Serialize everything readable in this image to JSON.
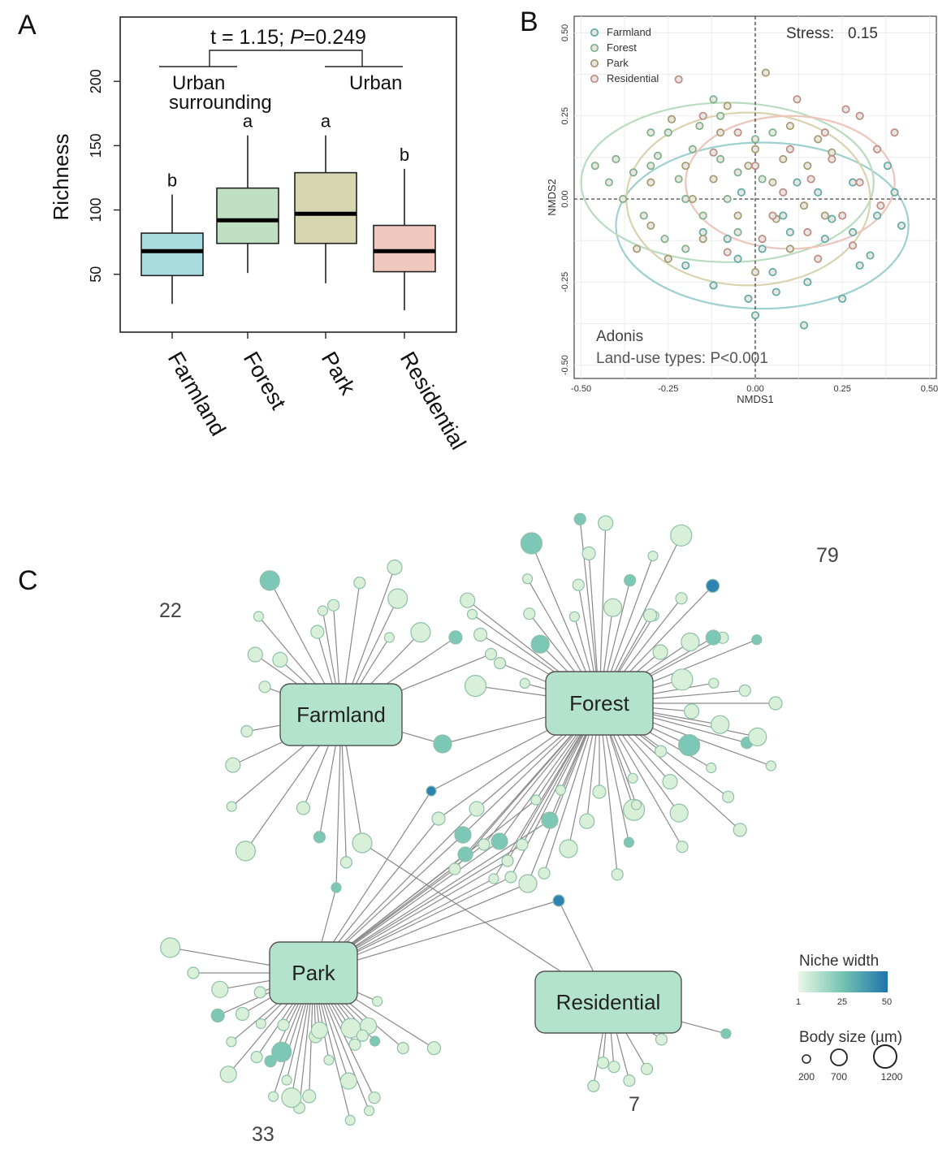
{
  "panel_labels": {
    "a": "A",
    "b": "B",
    "c": "C"
  },
  "colors": {
    "farmland": "#a9dcdf",
    "forest": "#bfe0c3",
    "park": "#d6d7b1",
    "residential": "#efc9bd",
    "node_low": "#e8f6e6",
    "node_mid": "#74c3b1",
    "node_high": "#2279ad",
    "hub": "#b4e3cd"
  },
  "chart_data": [
    {
      "type": "box",
      "panel": "A",
      "title": "t = 1.15; P=0.249",
      "ylabel": "Richness",
      "ylim": [
        5,
        250
      ],
      "yticks": [
        50,
        100,
        150,
        200
      ],
      "categories": [
        "Farmland",
        "Forest",
        "Park",
        "Residential"
      ],
      "boxes": [
        {
          "category": "Farmland",
          "min": 27,
          "q1": 49,
          "median": 68,
          "q3": 82,
          "max": 112,
          "letter": "b"
        },
        {
          "category": "Forest",
          "min": 51,
          "q1": 74,
          "median": 92,
          "q3": 117,
          "max": 158,
          "letter": "a"
        },
        {
          "category": "Park",
          "min": 43,
          "q1": 74,
          "median": 97,
          "q3": 129,
          "max": 158,
          "letter": "a"
        },
        {
          "category": "Residential",
          "min": 22,
          "q1": 52,
          "median": 68,
          "q3": 88,
          "max": 132,
          "letter": "b"
        }
      ],
      "group_labels": {
        "left": [
          "Urban",
          "surrounding"
        ],
        "right": "Urban"
      }
    },
    {
      "type": "scatter",
      "panel": "B",
      "xlabel": "NMDS1",
      "ylabel": "NMDS2",
      "xlim": [
        -0.52,
        0.52
      ],
      "ylim": [
        -0.54,
        0.55
      ],
      "xticks": [
        -0.5,
        -0.25,
        0.0,
        0.25,
        0.5
      ],
      "yticks": [
        -0.5,
        -0.25,
        0.0,
        0.25,
        0.5
      ],
      "xticklabels": [
        "-0.50",
        "-0.25",
        "0.00",
        "0.25",
        "0.50"
      ],
      "yticklabels": [
        "-0.50",
        "-0.25",
        "0.00",
        "0.25",
        "0.50"
      ],
      "stress_label": "Stress:",
      "stress": "0.15",
      "annotation": [
        "Adonis",
        "Land-use types: P<0.001"
      ],
      "legend_position": "top-left",
      "grid": true,
      "series": [
        {
          "name": "Farmland",
          "color": "#5fa9a7",
          "ellipse": {
            "cx": 0.02,
            "cy": -0.08,
            "rx": 0.42,
            "ry": 0.25
          },
          "points": [
            [
              -0.05,
              -0.18
            ],
            [
              0.05,
              -0.22
            ],
            [
              0.15,
              -0.25
            ],
            [
              -0.12,
              -0.26
            ],
            [
              0.2,
              -0.12
            ],
            [
              0.28,
              -0.1
            ],
            [
              0.35,
              -0.05
            ],
            [
              0.4,
              0.02
            ],
            [
              0.42,
              -0.08
            ],
            [
              0.3,
              -0.2
            ],
            [
              0.1,
              -0.1
            ],
            [
              -0.02,
              -0.3
            ],
            [
              0.0,
              -0.35
            ],
            [
              0.08,
              -0.05
            ],
            [
              0.18,
              0.02
            ],
            [
              -0.2,
              -0.2
            ],
            [
              0.25,
              -0.3
            ],
            [
              0.14,
              -0.38
            ],
            [
              -0.08,
              -0.12
            ],
            [
              0.33,
              -0.17
            ],
            [
              0.22,
              -0.06
            ],
            [
              0.06,
              -0.28
            ],
            [
              -0.15,
              -0.1
            ],
            [
              0.38,
              0.1
            ],
            [
              0.12,
              0.05
            ],
            [
              -0.04,
              0.02
            ],
            [
              0.02,
              -0.15
            ],
            [
              0.28,
              0.05
            ]
          ]
        },
        {
          "name": "Forest",
          "color": "#7fb08a",
          "ellipse": {
            "cx": -0.08,
            "cy": 0.05,
            "rx": 0.42,
            "ry": 0.24
          },
          "points": [
            [
              -0.4,
              0.12
            ],
            [
              -0.3,
              0.1
            ],
            [
              -0.25,
              0.2
            ],
            [
              -0.18,
              0.15
            ],
            [
              -0.1,
              0.25
            ],
            [
              -0.05,
              0.08
            ],
            [
              -0.2,
              0.0
            ],
            [
              -0.32,
              -0.05
            ],
            [
              -0.38,
              0.0
            ],
            [
              -0.15,
              -0.05
            ],
            [
              -0.1,
              0.12
            ],
            [
              0.0,
              0.18
            ],
            [
              -0.28,
              0.13
            ],
            [
              -0.12,
              0.3
            ],
            [
              -0.22,
              0.06
            ],
            [
              -0.35,
              0.08
            ],
            [
              -0.05,
              -0.1
            ],
            [
              0.05,
              0.2
            ],
            [
              -0.42,
              0.05
            ],
            [
              -0.16,
              0.22
            ],
            [
              -0.26,
              -0.12
            ],
            [
              -0.08,
              0.0
            ],
            [
              -0.3,
              0.2
            ],
            [
              0.02,
              0.06
            ],
            [
              -0.2,
              -0.15
            ],
            [
              -0.46,
              0.1
            ]
          ]
        },
        {
          "name": "Park",
          "color": "#a59a6f",
          "ellipse": {
            "cx": -0.02,
            "cy": 0.0,
            "rx": 0.35,
            "ry": 0.26
          },
          "points": [
            [
              -0.3,
              0.05
            ],
            [
              -0.2,
              0.1
            ],
            [
              -0.1,
              0.2
            ],
            [
              0.0,
              0.15
            ],
            [
              0.1,
              0.22
            ],
            [
              0.05,
              0.05
            ],
            [
              -0.05,
              -0.05
            ],
            [
              -0.15,
              -0.12
            ],
            [
              -0.25,
              -0.18
            ],
            [
              0.15,
              0.1
            ],
            [
              0.2,
              -0.05
            ],
            [
              0.1,
              -0.15
            ],
            [
              -0.08,
              0.28
            ],
            [
              0.0,
              -0.22
            ],
            [
              -0.3,
              -0.08
            ],
            [
              0.18,
              0.18
            ],
            [
              -0.18,
              0.0
            ],
            [
              0.08,
              0.12
            ],
            [
              -0.12,
              0.06
            ],
            [
              0.14,
              -0.02
            ],
            [
              -0.24,
              0.24
            ],
            [
              0.03,
              0.38
            ],
            [
              -0.34,
              -0.15
            ],
            [
              0.06,
              -0.06
            ],
            [
              -0.02,
              0.1
            ],
            [
              0.22,
              0.14
            ]
          ]
        },
        {
          "name": "Residential",
          "color": "#c08a84",
          "ellipse": {
            "cx": 0.1,
            "cy": 0.05,
            "rx": 0.3,
            "ry": 0.2
          },
          "points": [
            [
              0.0,
              0.1
            ],
            [
              0.1,
              0.15
            ],
            [
              0.2,
              0.2
            ],
            [
              0.3,
              0.05
            ],
            [
              0.25,
              -0.05
            ],
            [
              0.15,
              -0.1
            ],
            [
              0.05,
              -0.05
            ],
            [
              -0.05,
              0.2
            ],
            [
              0.35,
              0.15
            ],
            [
              0.3,
              0.25
            ],
            [
              0.4,
              0.2
            ],
            [
              0.12,
              0.3
            ],
            [
              -0.15,
              0.25
            ],
            [
              0.22,
              0.12
            ],
            [
              0.08,
              0.02
            ],
            [
              0.18,
              -0.18
            ],
            [
              0.28,
              -0.14
            ],
            [
              -0.08,
              -0.16
            ],
            [
              0.36,
              -0.02
            ],
            [
              -0.22,
              0.36
            ],
            [
              0.26,
              0.27
            ],
            [
              0.02,
              -0.12
            ],
            [
              0.16,
              0.06
            ],
            [
              -0.12,
              0.14
            ]
          ]
        }
      ]
    },
    {
      "type": "network",
      "panel": "C",
      "hubs": [
        {
          "name": "Farmland",
          "count": "22"
        },
        {
          "name": "Forest",
          "count": "79"
        },
        {
          "name": "Park",
          "count": "33"
        },
        {
          "name": "Residential",
          "count": "7"
        }
      ],
      "legend": {
        "niche_title": "Niche width",
        "niche_ticks": [
          "1",
          "25",
          "50"
        ],
        "size_title": "Body size (µm)",
        "size_ticks": [
          "200",
          "700",
          "1200"
        ]
      }
    }
  ]
}
